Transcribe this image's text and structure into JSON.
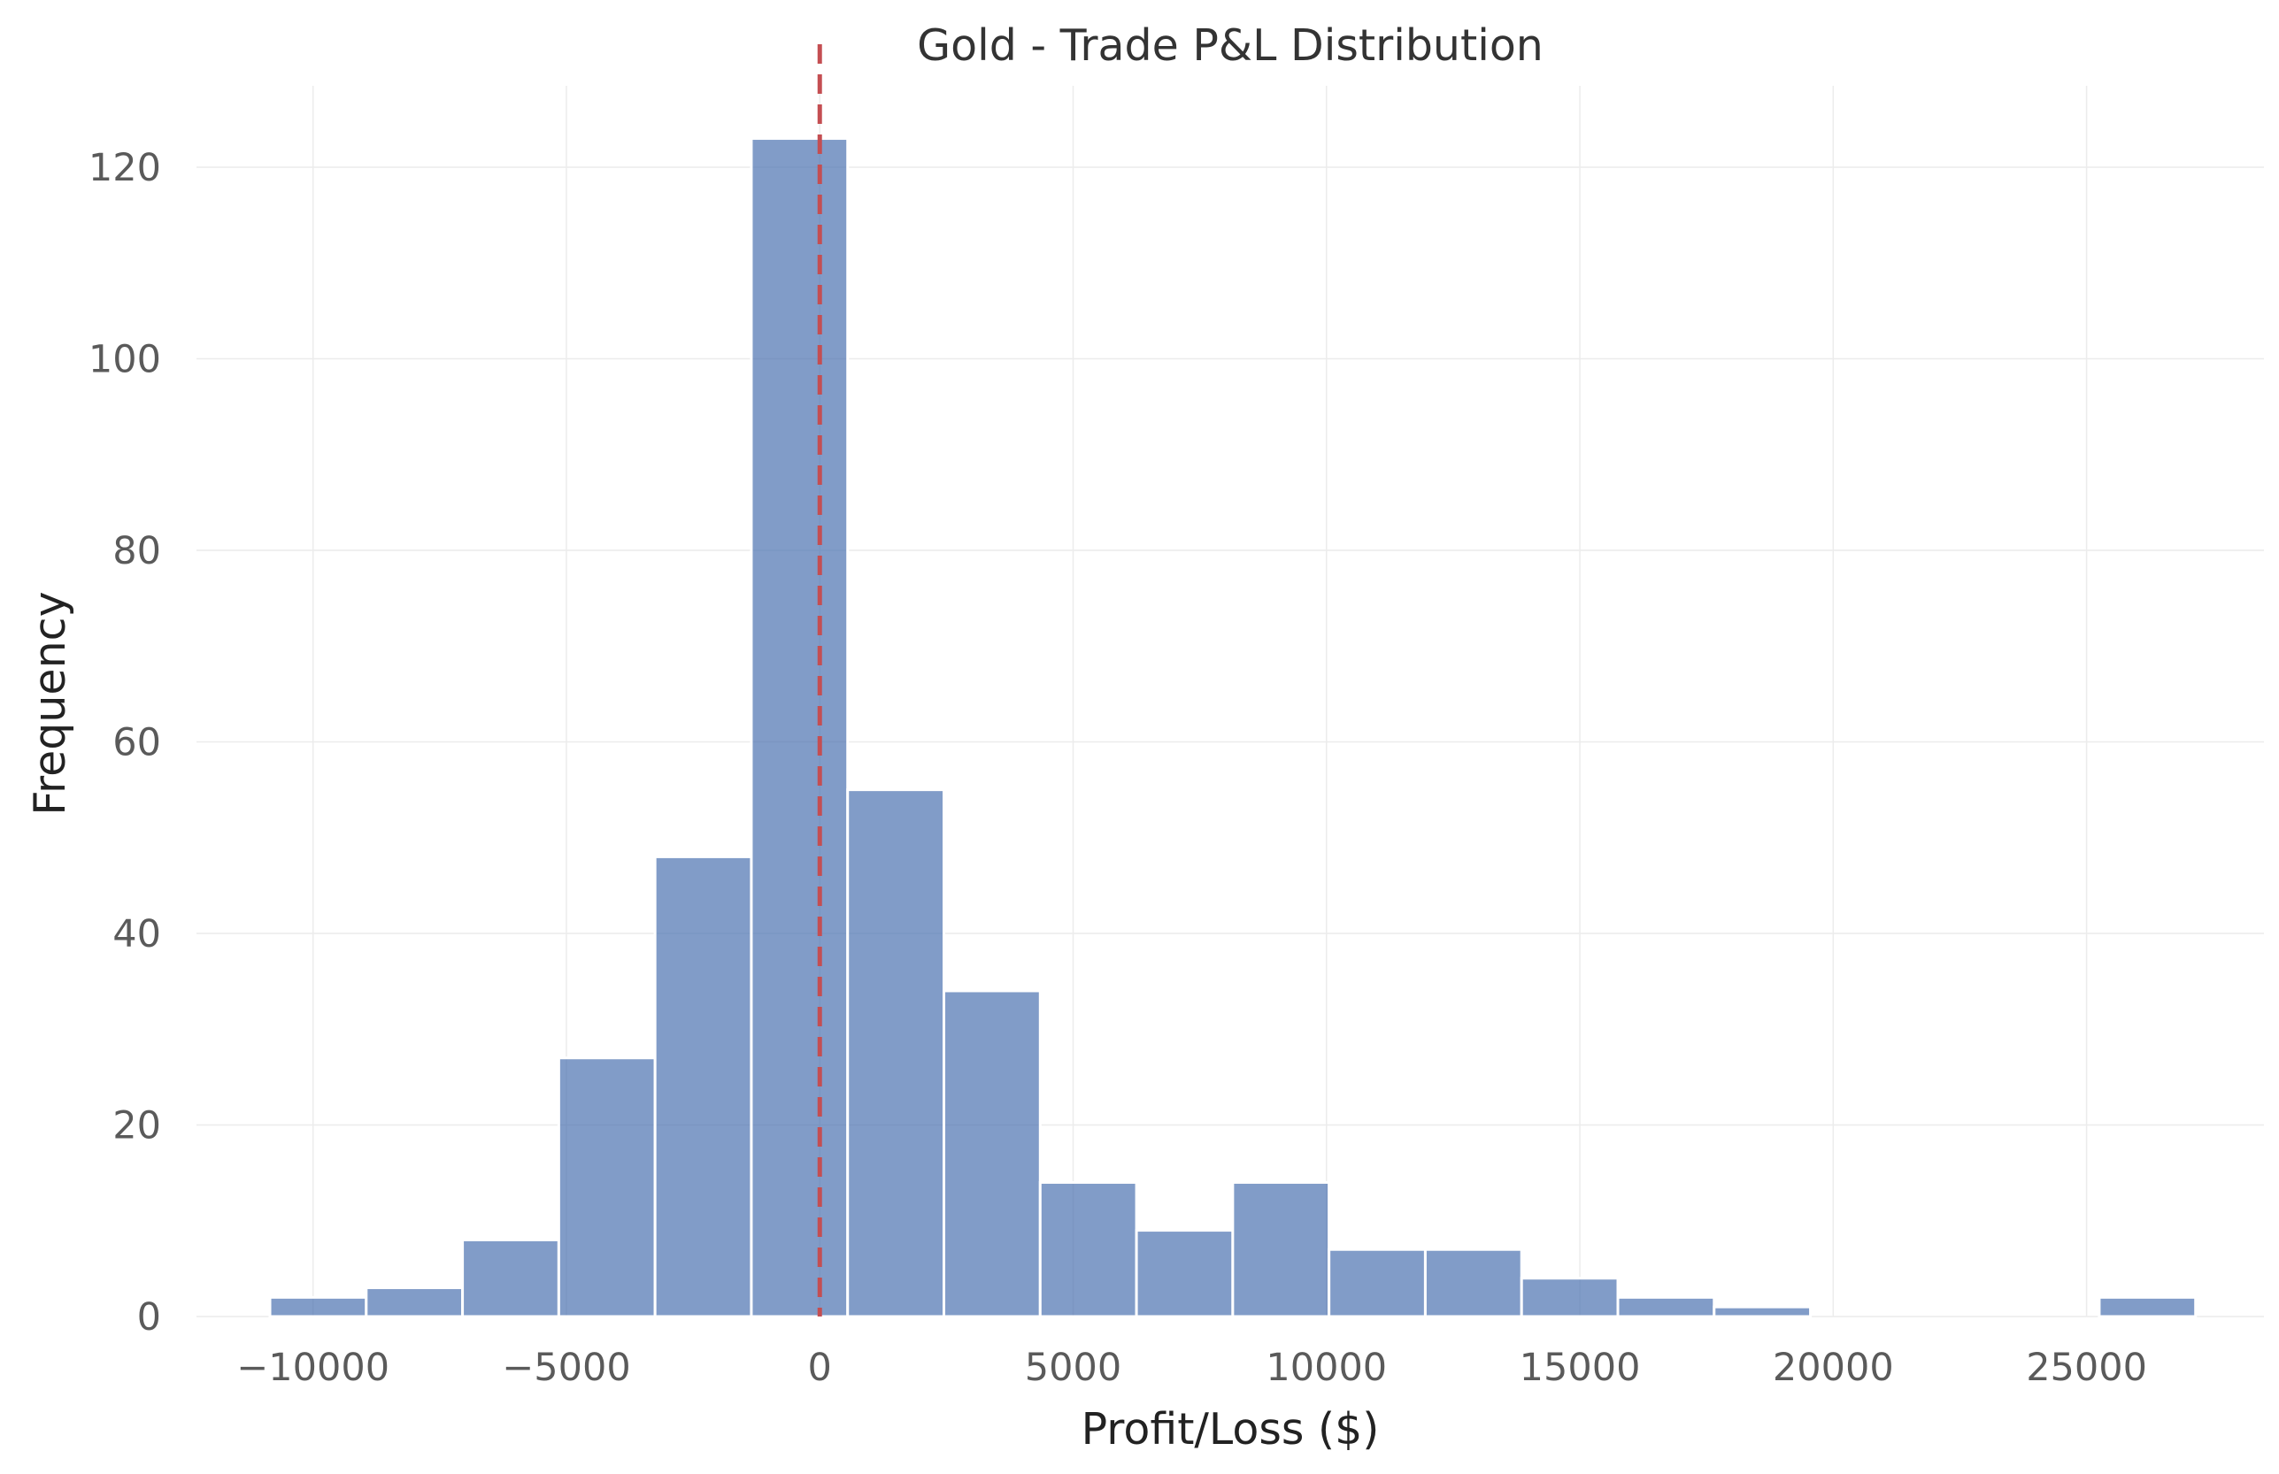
{
  "chart_data": {
    "type": "bar",
    "title": "Gold - Trade P&L Distribution",
    "xlabel": "Profit/Loss ($)",
    "ylabel": "Frequency",
    "xlim": [
      -12300,
      28500
    ],
    "ylim": [
      0,
      128.5
    ],
    "x_ticks": [
      -10000,
      -5000,
      0,
      5000,
      10000,
      15000,
      20000,
      25000
    ],
    "x_tick_labels": [
      "−10000",
      "−5000",
      "0",
      "5000",
      "10000",
      "15000",
      "20000",
      "25000"
    ],
    "y_ticks": [
      0,
      20,
      40,
      60,
      80,
      100,
      120
    ],
    "y_tick_labels": [
      "0",
      "20",
      "40",
      "60",
      "80",
      "100",
      "120"
    ],
    "grid": true,
    "bins": [
      {
        "x0": -10850,
        "x1": -8950,
        "count": 2
      },
      {
        "x0": -8950,
        "x1": -7050,
        "count": 3
      },
      {
        "x0": -7050,
        "x1": -5150,
        "count": 8
      },
      {
        "x0": -5150,
        "x1": -3250,
        "count": 27
      },
      {
        "x0": -3250,
        "x1": -1350,
        "count": 48
      },
      {
        "x0": -1350,
        "x1": 550,
        "count": 123
      },
      {
        "x0": 550,
        "x1": 2450,
        "count": 55
      },
      {
        "x0": 2450,
        "x1": 4350,
        "count": 34
      },
      {
        "x0": 4350,
        "x1": 6250,
        "count": 14
      },
      {
        "x0": 6250,
        "x1": 8150,
        "count": 9
      },
      {
        "x0": 8150,
        "x1": 10050,
        "count": 14
      },
      {
        "x0": 10050,
        "x1": 11950,
        "count": 7
      },
      {
        "x0": 11950,
        "x1": 13850,
        "count": 7
      },
      {
        "x0": 13850,
        "x1": 15750,
        "count": 4
      },
      {
        "x0": 15750,
        "x1": 17650,
        "count": 2
      },
      {
        "x0": 17650,
        "x1": 19550,
        "count": 1
      },
      {
        "x0": 19550,
        "x1": 21450,
        "count": 0
      },
      {
        "x0": 21450,
        "x1": 23350,
        "count": 0
      },
      {
        "x0": 23350,
        "x1": 25250,
        "count": 0
      },
      {
        "x0": 25250,
        "x1": 27150,
        "count": 2
      }
    ],
    "reference_line": {
      "x": 0,
      "style": "dashed",
      "color": "#c44e52"
    },
    "bar_color": "#4c72b0",
    "bar_opacity": 0.7
  }
}
